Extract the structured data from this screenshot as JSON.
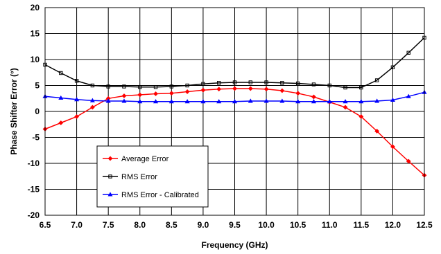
{
  "chart_data": {
    "type": "line",
    "title": "",
    "xlabel": "Frequency (GHz)",
    "ylabel": "Phase Shifter Error (°)",
    "xlim": [
      6.5,
      12.5
    ],
    "ylim": [
      -20,
      20
    ],
    "xticks": [
      "6.5",
      "7.0",
      "7.5",
      "8.0",
      "8.5",
      "9.0",
      "9.5",
      "10.0",
      "10.5",
      "11.0",
      "11.5",
      "12.0",
      "12.5"
    ],
    "yticks": [
      "20",
      "15",
      "10",
      "5",
      "0",
      "-5",
      "-10",
      "-15",
      "-20"
    ],
    "grid": true,
    "legend": "bottom-left",
    "series": [
      {
        "name": "Average Error",
        "color": "#ff0000",
        "marker": "diamond",
        "x": [
          6.5,
          6.75,
          7.0,
          7.25,
          7.5,
          7.75,
          8.0,
          8.25,
          8.5,
          8.75,
          9.0,
          9.25,
          9.5,
          9.75,
          10.0,
          10.25,
          10.5,
          10.75,
          11.0,
          11.25,
          11.5,
          11.75,
          12.0,
          12.25,
          12.5
        ],
        "y": [
          -3.4,
          -2.2,
          -1.0,
          0.8,
          2.5,
          3.0,
          3.2,
          3.4,
          3.5,
          3.8,
          4.1,
          4.3,
          4.4,
          4.4,
          4.3,
          4.0,
          3.5,
          2.8,
          1.8,
          0.8,
          -1.0,
          -3.8,
          -6.8,
          -9.6,
          -12.3
        ]
      },
      {
        "name": "RMS Error",
        "color": "#000000",
        "marker": "square",
        "x": [
          6.5,
          6.75,
          7.0,
          7.25,
          7.5,
          7.75,
          8.0,
          8.25,
          8.5,
          8.75,
          9.0,
          9.25,
          9.5,
          9.75,
          10.0,
          10.25,
          10.5,
          10.75,
          11.0,
          11.25,
          11.5,
          11.75,
          12.0,
          12.25,
          12.5
        ],
        "y": [
          9.0,
          7.4,
          5.9,
          5.0,
          4.8,
          4.8,
          4.7,
          4.7,
          4.8,
          5.0,
          5.3,
          5.5,
          5.6,
          5.6,
          5.6,
          5.5,
          5.4,
          5.2,
          5.0,
          4.6,
          4.6,
          6.0,
          8.5,
          11.3,
          14.2
        ]
      },
      {
        "name": "RMS Error - Calibrated",
        "color": "#0000ff",
        "marker": "triangle",
        "x": [
          6.5,
          6.75,
          7.0,
          7.25,
          7.5,
          7.75,
          8.0,
          8.25,
          8.5,
          8.75,
          9.0,
          9.25,
          9.5,
          9.75,
          10.0,
          10.25,
          10.5,
          10.75,
          11.0,
          11.25,
          11.5,
          11.75,
          12.0,
          12.25,
          12.5
        ],
        "y": [
          2.9,
          2.6,
          2.3,
          2.1,
          2.0,
          2.0,
          1.9,
          1.9,
          1.9,
          1.9,
          1.9,
          1.9,
          1.9,
          2.0,
          2.0,
          2.0,
          1.9,
          1.9,
          1.9,
          1.9,
          1.9,
          2.0,
          2.2,
          2.9,
          3.7
        ]
      }
    ]
  }
}
